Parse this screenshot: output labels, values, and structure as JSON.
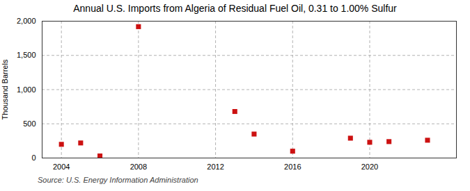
{
  "chart_data": {
    "type": "scatter",
    "title": "Annual U.S. Imports from Algeria of Residual Fuel Oil, 0.31 to 1.00% Sulfur",
    "ylabel": "Thousand Barrels",
    "caption": "Source: U.S. Energy Information Administration",
    "x": [
      2004,
      2005,
      2006,
      2008,
      2013,
      2014,
      2016,
      2019,
      2020,
      2021,
      2023
    ],
    "values": [
      200,
      220,
      30,
      1920,
      680,
      350,
      100,
      290,
      230,
      240,
      260
    ],
    "color": "#cc1111",
    "marker": "square",
    "xlim": [
      2003.0,
      2024.5
    ],
    "xticks": [
      2004,
      2008,
      2012,
      2016,
      2020
    ],
    "ylim": [
      0,
      2000
    ],
    "yticks": [
      0,
      500,
      {
        "value": 1000,
        "label": "1,000"
      },
      {
        "value": 1500,
        "label": "1,500"
      },
      {
        "value": 2000,
        "label": "2,000"
      }
    ],
    "grid": true
  }
}
